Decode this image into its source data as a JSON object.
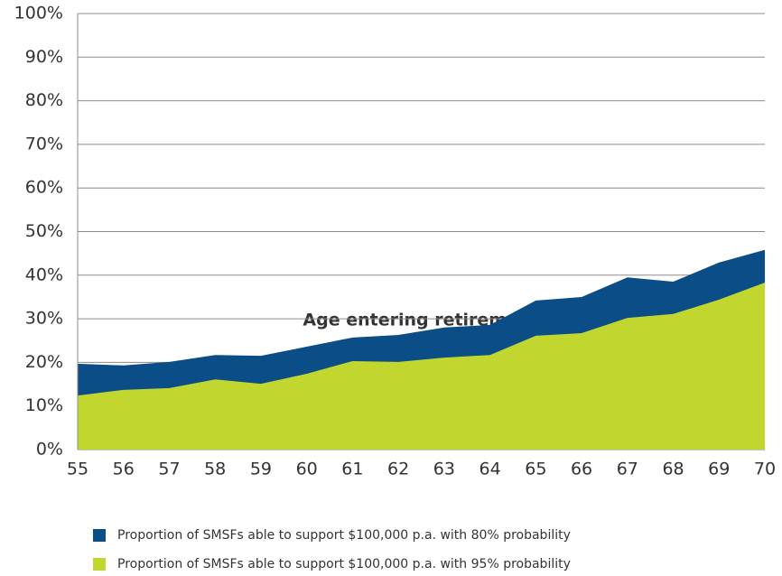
{
  "chart_data": {
    "type": "area",
    "x_label": "Age entering retirement",
    "x": [
      55,
      56,
      57,
      58,
      59,
      60,
      61,
      62,
      63,
      64,
      65,
      66,
      67,
      68,
      69,
      70
    ],
    "xlim": [
      55,
      70
    ],
    "xticks": [
      55,
      56,
      57,
      58,
      59,
      60,
      61,
      62,
      63,
      64,
      65,
      66,
      67,
      68,
      69,
      70
    ],
    "ylim": [
      0,
      100
    ],
    "yticks": [
      {
        "value": 0,
        "label": "0%"
      },
      {
        "value": 10,
        "label": "10%"
      },
      {
        "value": 20,
        "label": "20%"
      },
      {
        "value": 30,
        "label": "30%"
      },
      {
        "value": 40,
        "label": "40%"
      },
      {
        "value": 50,
        "label": "50%"
      },
      {
        "value": 60,
        "label": "60%"
      },
      {
        "value": 70,
        "label": "70%"
      },
      {
        "value": 80,
        "label": "80%"
      },
      {
        "value": 90,
        "label": "90%"
      },
      {
        "value": 100,
        "label": "100%"
      }
    ],
    "grid": true,
    "legend": "bottom",
    "series": [
      {
        "name": "Proportion of SMSFs able to support $100,000 p.a. with 80% probability",
        "color": "#0b4e87",
        "values": [
          19.7,
          19.3,
          20.1,
          21.7,
          21.5,
          23.6,
          25.7,
          26.3,
          28,
          28.6,
          34.2,
          35,
          39.5,
          38.5,
          42.9,
          45.8
        ]
      },
      {
        "name": "Proportion of SMSFs able to support $100,000 p.a. with 95% probability",
        "color": "#c1d72f",
        "values": [
          12.4,
          13.7,
          14.1,
          16.1,
          15.1,
          17.4,
          20.3,
          20.1,
          21.1,
          21.7,
          26.1,
          26.7,
          30.2,
          31.1,
          34.4,
          38.3
        ]
      }
    ]
  }
}
